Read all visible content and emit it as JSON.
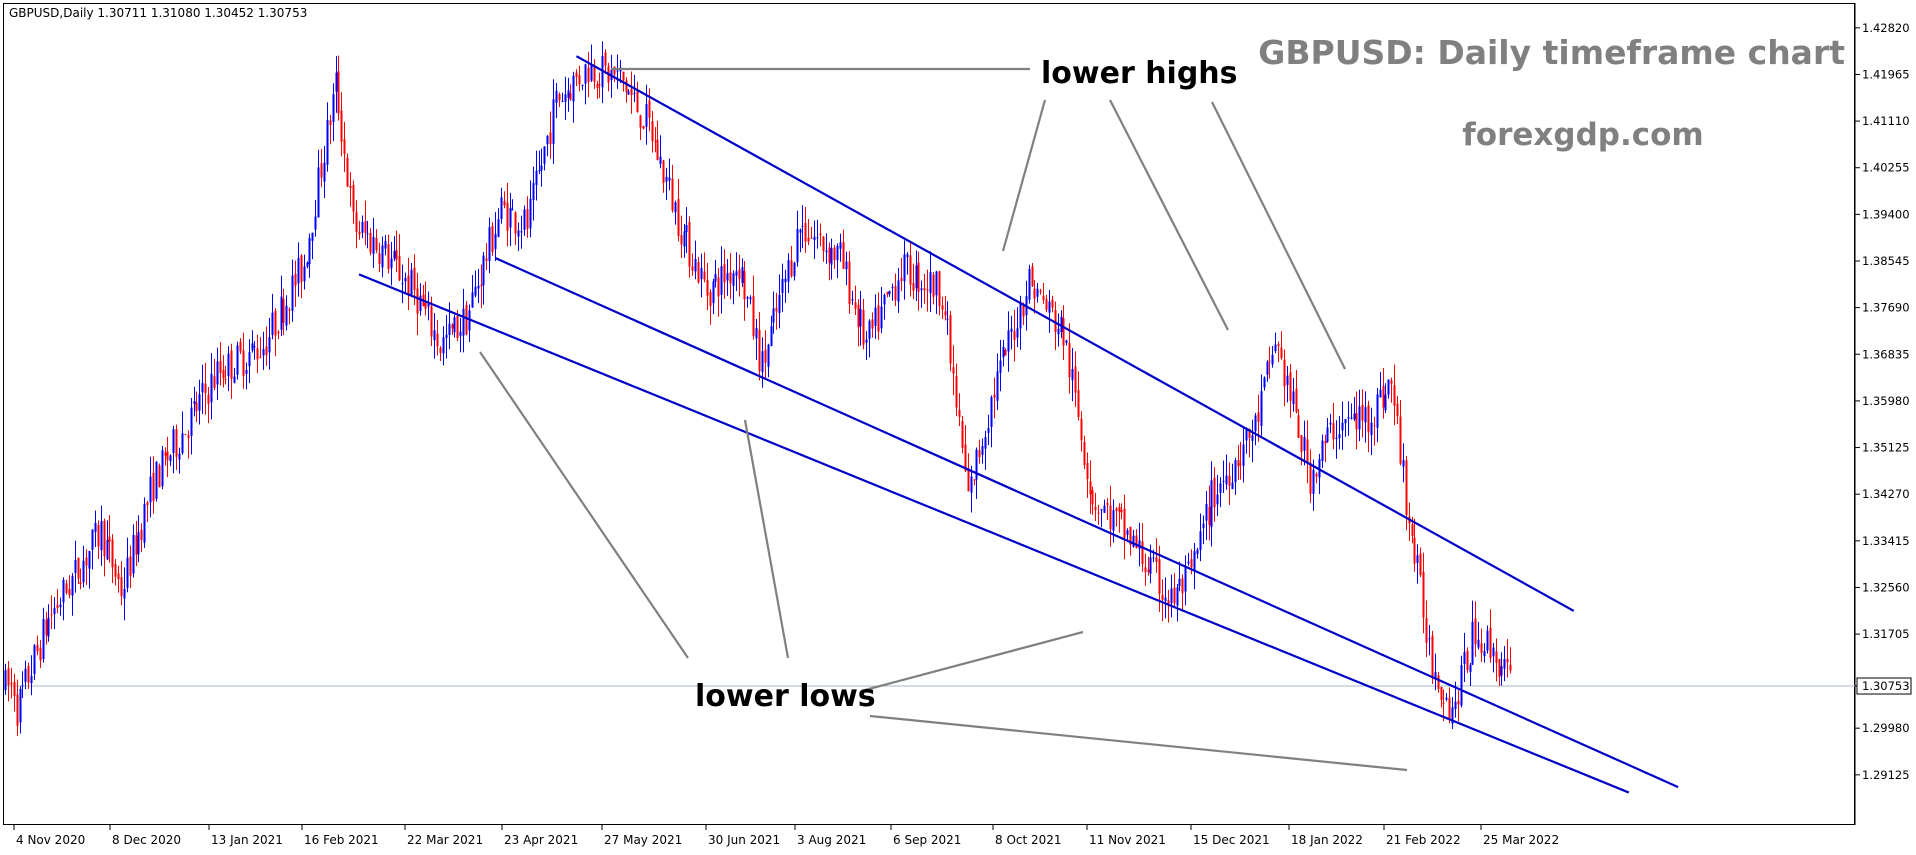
{
  "header": {
    "symbol_info": "GBPUSD,Daily  1.30711 1.31080 1.30452 1.30753"
  },
  "watermark": {
    "title": "GBPUSD: Daily timeframe chart",
    "site": "forexgdp.com"
  },
  "annotations": {
    "lower_highs": "lower highs",
    "lower_lows": "lower lows"
  },
  "colors": {
    "bull": "#0000ff",
    "bear": "#ff0000",
    "channel": "#0000c8",
    "pointer": "#808080",
    "price_line": "#a9b7c6",
    "watermark_text": "#808080"
  },
  "chart_data": {
    "type": "candlestick",
    "symbol": "GBPUSD",
    "timeframe": "Daily",
    "ohlc_last": {
      "open": 1.30711,
      "high": 1.3108,
      "low": 1.30452,
      "close": 1.30753
    },
    "current_price_label": "1.30753",
    "ylim": [
      1.287,
      1.43
    ],
    "y_ticks": [
      1.4282,
      1.41965,
      1.4111,
      1.40255,
      1.394,
      1.38545,
      1.3769,
      1.36835,
      1.3598,
      1.35125,
      1.3427,
      1.33415,
      1.3256,
      1.31705,
      1.30753,
      1.2998,
      1.29125
    ],
    "y_tick_labels": [
      "1.42820",
      "1.41965",
      "1.41110",
      "1.40255",
      "1.39400",
      "1.38545",
      "1.37690",
      "1.36835",
      "1.35980",
      "1.35125",
      "1.34270",
      "1.33415",
      "1.32560",
      "1.31705",
      "1.30753",
      "1.29980",
      "1.29125"
    ],
    "x_tick_labels": [
      "4 Nov 2020",
      "8 Dec 2020",
      "13 Jan 2021",
      "16 Feb 2021",
      "22 Mar 2021",
      "23 Apr 2021",
      "27 May 2021",
      "30 Jun 2021",
      "3 Aug 2021",
      "6 Sep 2021",
      "8 Oct 2021",
      "11 Nov 2021",
      "15 Dec 2021",
      "18 Jan 2022",
      "21 Feb 2022",
      "25 Mar 2022"
    ],
    "close_path": [
      [
        "4 Nov 2020",
        1.302
      ],
      [
        "16 Nov 2020",
        1.32
      ],
      [
        "4 Dec 2020",
        1.336
      ],
      [
        "11 Dec 2020",
        1.325
      ],
      [
        "22 Dec 2020",
        1.345
      ],
      [
        "13 Jan 2021",
        1.365
      ],
      [
        "29 Jan 2021",
        1.37
      ],
      [
        "12 Feb 2021",
        1.385
      ],
      [
        "23 Feb 2021",
        1.418
      ],
      [
        "1 Mar 2021",
        1.392
      ],
      [
        "10 Mar 2021",
        1.388
      ],
      [
        "22 Mar 2021",
        1.38
      ],
      [
        "31 Mar 2021",
        1.37
      ],
      [
        "9 Apr 2021",
        1.375
      ],
      [
        "21 Apr 2021",
        1.395
      ],
      [
        "30 Apr 2021",
        1.392
      ],
      [
        "10 May 2021",
        1.415
      ],
      [
        "21 May 2021",
        1.421
      ],
      [
        "1 Jun 2021",
        1.419
      ],
      [
        "11 Jun 2021",
        1.41
      ],
      [
        "23 Jun 2021",
        1.39
      ],
      [
        "1 Jul 2021",
        1.38
      ],
      [
        "12 Jul 2021",
        1.385
      ],
      [
        "20 Jul 2021",
        1.366
      ],
      [
        "2 Aug 2021",
        1.392
      ],
      [
        "16 Aug 2021",
        1.386
      ],
      [
        "25 Aug 2021",
        1.37
      ],
      [
        "6 Sep 2021",
        1.384
      ],
      [
        "20 Sep 2021",
        1.38
      ],
      [
        "29 Sep 2021",
        1.342
      ],
      [
        "8 Oct 2021",
        1.362
      ],
      [
        "20 Oct 2021",
        1.382
      ],
      [
        "1 Nov 2021",
        1.372
      ],
      [
        "11 Nov 2021",
        1.342
      ],
      [
        "22 Nov 2021",
        1.336
      ],
      [
        "8 Dec 2021",
        1.323
      ],
      [
        "15 Dec 2021",
        1.328
      ],
      [
        "22 Dec 2021",
        1.342
      ],
      [
        "6 Jan 2022",
        1.355
      ],
      [
        "13 Jan 2022",
        1.371
      ],
      [
        "25 Jan 2022",
        1.346
      ],
      [
        "2 Feb 2022",
        1.355
      ],
      [
        "14 Feb 2022",
        1.357
      ],
      [
        "22 Feb 2022",
        1.363
      ],
      [
        "28 Feb 2022",
        1.338
      ],
      [
        "8 Mar 2022",
        1.312
      ],
      [
        "15 Mar 2022",
        1.303
      ],
      [
        "23 Mar 2022",
        1.318
      ],
      [
        "30 Mar 2022",
        1.313
      ],
      [
        "5 Apr 2022",
        1.3075
      ]
    ],
    "channel_lines": [
      {
        "name": "upper",
        "from": [
          "17 May 2021",
          1.423
        ],
        "to": [
          "26 Apr 2022",
          1.3213
        ]
      },
      {
        "name": "middle",
        "from": [
          "19 Apr 2021",
          1.386
        ],
        "to": [
          "1 Jun 2022",
          1.289
        ]
      },
      {
        "name": "lower",
        "from": [
          "3 Mar 2021",
          1.383
        ],
        "to": [
          "15 May 2022",
          1.288
        ]
      }
    ]
  }
}
